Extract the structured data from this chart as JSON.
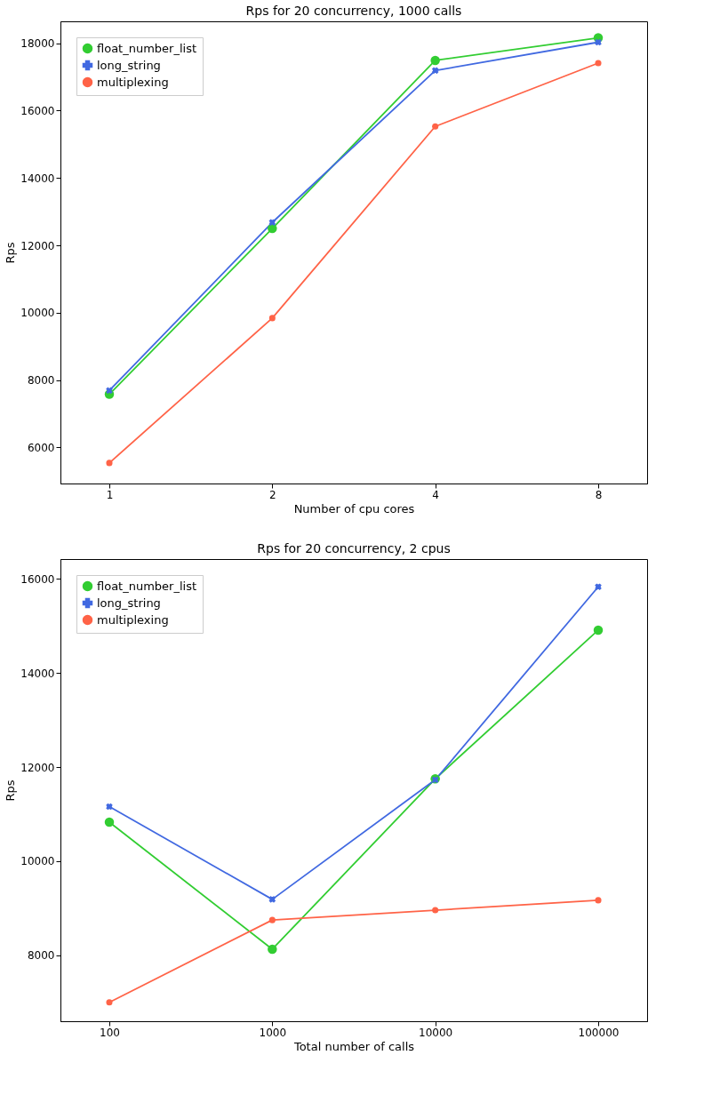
{
  "chart_data": [
    {
      "type": "line",
      "title": "Rps for 20 concurrency, 1000 calls",
      "xlabel": "Number of cpu cores",
      "ylabel": "Rps",
      "categories": [
        "1",
        "2",
        "4",
        "8"
      ],
      "ylim": [
        4930,
        18650
      ],
      "yticks": [
        6000,
        8000,
        10000,
        12000,
        14000,
        16000,
        18000
      ],
      "grid": false,
      "legend": "top left",
      "series": [
        {
          "name": "float_number_list",
          "color": "#32cd32",
          "marker": "circle",
          "values": [
            7580,
            12500,
            17490,
            18160
          ]
        },
        {
          "name": "long_string",
          "color": "#4169e1",
          "marker": "cross",
          "values": [
            7690,
            12680,
            17190,
            18030
          ]
        },
        {
          "name": "multiplexing",
          "color": "#ff6347",
          "marker": "circle",
          "values": [
            5540,
            9840,
            15530,
            17410
          ]
        }
      ]
    },
    {
      "type": "line",
      "title": "Rps for 20 concurrency, 2 cpus",
      "xlabel": "Total number of calls",
      "ylabel": "Rps",
      "categories": [
        "100",
        "1000",
        "10000",
        "100000"
      ],
      "ylim": [
        6600,
        16420
      ],
      "yticks": [
        8000,
        10000,
        12000,
        14000,
        16000
      ],
      "grid": false,
      "legend": "top left",
      "series": [
        {
          "name": "float_number_list",
          "color": "#32cd32",
          "marker": "circle",
          "values": [
            10830,
            8130,
            11750,
            14910
          ]
        },
        {
          "name": "long_string",
          "color": "#4169e1",
          "marker": "cross",
          "values": [
            11160,
            9190,
            11730,
            15830
          ]
        },
        {
          "name": "multiplexing",
          "color": "#ff6347",
          "marker": "circle",
          "values": [
            7000,
            8750,
            8960,
            9170
          ]
        }
      ]
    }
  ]
}
